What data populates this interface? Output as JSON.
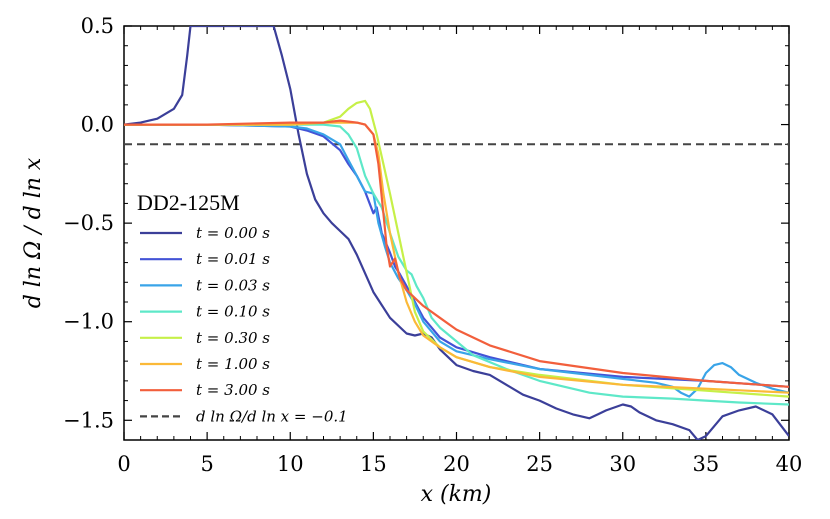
{
  "chart_data": {
    "type": "line",
    "title": "",
    "xlabel": "x (km)",
    "ylabel": "d ln Ω / d ln x",
    "xlim": [
      0,
      40
    ],
    "ylim": [
      -1.6,
      0.5
    ],
    "xticks": [
      0,
      5,
      10,
      15,
      20,
      25,
      30,
      35,
      40
    ],
    "yticks": [
      -1.5,
      -1.0,
      -0.5,
      0.0,
      0.5
    ],
    "xtick_labels": [
      "0",
      "5",
      "10",
      "15",
      "20",
      "25",
      "30",
      "35",
      "40"
    ],
    "ytick_labels": [
      "−1.5",
      "−1.0",
      "−0.5",
      "0.0",
      "0.5"
    ],
    "legend_title": "DD2-125M",
    "legend_position": "center-left",
    "series": [
      {
        "name": "t = 0.00 s",
        "color": "#3b3f99",
        "x": [
          0,
          1,
          2,
          3,
          3.5,
          3.8,
          4.0,
          9.0,
          9.5,
          10,
          10.5,
          11,
          11.5,
          12,
          12.5,
          13,
          13.5,
          14,
          15,
          16,
          17,
          17.5,
          18,
          18.5,
          19,
          20,
          21,
          22,
          23,
          24,
          25,
          26,
          27,
          28,
          28.5,
          29,
          30,
          30.5,
          31,
          32,
          33,
          34,
          34.5,
          35,
          36,
          37,
          38,
          39,
          40
        ],
        "y": [
          0,
          0.01,
          0.03,
          0.08,
          0.15,
          0.35,
          0.5,
          0.5,
          0.35,
          0.18,
          -0.05,
          -0.25,
          -0.38,
          -0.45,
          -0.5,
          -0.54,
          -0.58,
          -0.66,
          -0.85,
          -0.98,
          -1.06,
          -1.07,
          -1.06,
          -1.08,
          -1.14,
          -1.22,
          -1.25,
          -1.27,
          -1.32,
          -1.37,
          -1.4,
          -1.44,
          -1.47,
          -1.49,
          -1.47,
          -1.45,
          -1.42,
          -1.43,
          -1.46,
          -1.5,
          -1.52,
          -1.55,
          -1.6,
          -1.58,
          -1.48,
          -1.45,
          -1.43,
          -1.47,
          -1.58
        ]
      },
      {
        "name": "t = 0.01 s",
        "color": "#4353d6",
        "x": [
          0,
          5,
          10,
          11,
          12,
          13,
          13.5,
          14,
          14.5,
          15,
          15.2,
          15.5,
          16,
          16.3,
          16.6,
          17,
          17.5,
          18,
          18.5,
          19,
          20,
          22,
          25,
          30,
          35,
          40
        ],
        "y": [
          0,
          0,
          -0.01,
          -0.03,
          -0.06,
          -0.13,
          -0.2,
          -0.26,
          -0.34,
          -0.45,
          -0.42,
          -0.55,
          -0.65,
          -0.72,
          -0.76,
          -0.82,
          -0.9,
          -0.98,
          -1.03,
          -1.08,
          -1.13,
          -1.18,
          -1.24,
          -1.28,
          -1.3,
          -1.33
        ]
      },
      {
        "name": "t = 0.03 s",
        "color": "#39a4e8",
        "x": [
          0,
          5,
          10,
          11,
          12,
          13,
          13.5,
          14,
          14.5,
          15,
          15.3,
          15.7,
          16,
          16.5,
          17,
          17.5,
          18,
          19,
          20,
          22,
          25,
          30,
          32,
          33,
          33.5,
          34,
          34.5,
          35,
          35.5,
          36,
          36.5,
          37,
          38,
          39,
          40
        ],
        "y": [
          0,
          0,
          -0.01,
          -0.02,
          -0.05,
          -0.1,
          -0.18,
          -0.26,
          -0.34,
          -0.35,
          -0.5,
          -0.62,
          -0.7,
          -0.78,
          -0.84,
          -0.91,
          -1.0,
          -1.1,
          -1.15,
          -1.19,
          -1.24,
          -1.29,
          -1.31,
          -1.33,
          -1.36,
          -1.38,
          -1.34,
          -1.26,
          -1.22,
          -1.21,
          -1.23,
          -1.27,
          -1.31,
          -1.34,
          -1.36
        ]
      },
      {
        "name": "t = 0.10 s",
        "color": "#5ee8c8",
        "x": [
          0,
          5,
          10,
          12,
          13,
          13.5,
          14,
          14.5,
          15,
          15.5,
          16,
          16.5,
          17,
          17.3,
          17.6,
          18,
          18.5,
          19,
          20,
          21,
          23,
          25,
          28,
          30,
          33,
          35,
          37,
          40
        ],
        "y": [
          0,
          0,
          0,
          0,
          -0.01,
          -0.05,
          -0.12,
          -0.26,
          -0.35,
          -0.42,
          -0.55,
          -0.67,
          -0.74,
          -0.76,
          -0.82,
          -0.88,
          -0.98,
          -1.03,
          -1.1,
          -1.17,
          -1.24,
          -1.3,
          -1.36,
          -1.38,
          -1.39,
          -1.4,
          -1.41,
          -1.42
        ]
      },
      {
        "name": "t = 0.30 s",
        "color": "#c6f048",
        "x": [
          0,
          5,
          10,
          12,
          13,
          13.5,
          14,
          14.5,
          14.8,
          15.2,
          15.6,
          16,
          16.5,
          17,
          17.5,
          18,
          19,
          20,
          22,
          25,
          30,
          35,
          40
        ],
        "y": [
          0,
          0,
          0,
          0.01,
          0.04,
          0.08,
          0.11,
          0.12,
          0.08,
          -0.05,
          -0.2,
          -0.35,
          -0.55,
          -0.75,
          -0.95,
          -1.05,
          -1.13,
          -1.18,
          -1.23,
          -1.27,
          -1.32,
          -1.35,
          -1.38
        ]
      },
      {
        "name": "t = 1.00 s",
        "color": "#fbb938",
        "x": [
          0,
          5,
          10,
          12,
          13,
          14,
          14.5,
          15,
          15.3,
          15.6,
          16,
          16.5,
          17,
          17.5,
          18,
          19,
          20,
          22,
          25,
          30,
          35,
          40
        ],
        "y": [
          0,
          0,
          0,
          0.01,
          0.01,
          0.01,
          0,
          -0.05,
          -0.15,
          -0.35,
          -0.55,
          -0.75,
          -0.9,
          -1.0,
          -1.07,
          -1.13,
          -1.18,
          -1.23,
          -1.28,
          -1.32,
          -1.34,
          -1.36
        ]
      },
      {
        "name": "t = 3.00 s",
        "color": "#f25f3c",
        "x": [
          0,
          5,
          10,
          12,
          13,
          14,
          14.5,
          15,
          15.3,
          15.6,
          15.8,
          16.0,
          16.3,
          16.6,
          17,
          17.5,
          18,
          19,
          20,
          22,
          25,
          30,
          35,
          40
        ],
        "y": [
          0,
          0,
          0.01,
          0.01,
          0.02,
          0.01,
          0,
          -0.05,
          -0.2,
          -0.45,
          -0.62,
          -0.72,
          -0.68,
          -0.78,
          -0.84,
          -0.88,
          -0.92,
          -0.98,
          -1.04,
          -1.12,
          -1.2,
          -1.26,
          -1.3,
          -1.33
        ]
      }
    ],
    "reference_line": {
      "name": "d ln Ω/d ln x = −0.1",
      "y": -0.1,
      "color": "#444444",
      "style": "dashed"
    }
  }
}
